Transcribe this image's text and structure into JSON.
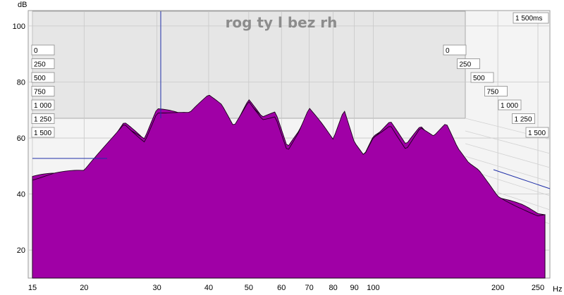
{
  "chart_data": {
    "type": "area",
    "title": "rog ty l bez rh",
    "ylabel": "dB",
    "xlabel": "Hz",
    "x_scale": "log",
    "xlim": [
      15,
      260
    ],
    "ylim": [
      10,
      105
    ],
    "x_ticks": [
      "15",
      "20",
      "30",
      "40",
      "50",
      "60",
      "70",
      "80",
      "90",
      "100",
      "200",
      "250"
    ],
    "x_tick_values": [
      15,
      20,
      30,
      40,
      50,
      60,
      70,
      80,
      90,
      100,
      200,
      250
    ],
    "y_ticks": [
      "20",
      "40",
      "60",
      "80",
      "100"
    ],
    "y_tick_values": [
      20,
      40,
      60,
      80,
      100
    ],
    "time_axis_unit": "ms",
    "time_label_top": "1 500ms",
    "time_slices_left": [
      "0",
      "250",
      "500",
      "750",
      "1 000",
      "1 250",
      "1 500"
    ],
    "time_slices_right": [
      "0",
      "250",
      "500",
      "750",
      "1 000",
      "1 250",
      "1 500"
    ],
    "fill_color": "#a000a6",
    "stroke_color": "#1a001a",
    "back_wall_color": "#e6e6e6",
    "frequency_response_db": {
      "x": [
        15,
        17,
        20,
        22,
        25,
        28,
        30,
        33,
        36,
        40,
        43,
        46,
        50,
        54,
        58,
        62,
        66,
        70,
        75,
        80,
        85,
        90,
        95,
        100,
        110,
        120,
        130,
        140,
        150,
        160,
        170,
        180,
        190,
        200,
        215,
        230,
        250
      ],
      "y": [
        46,
        47,
        47,
        55,
        66,
        60,
        70,
        69,
        68,
        74,
        71,
        64,
        74,
        68,
        69,
        56,
        62,
        70,
        64,
        58,
        69,
        58,
        54,
        61,
        66,
        57,
        64,
        60,
        64,
        55,
        50,
        48,
        44,
        40,
        38,
        36,
        33
      ]
    }
  }
}
